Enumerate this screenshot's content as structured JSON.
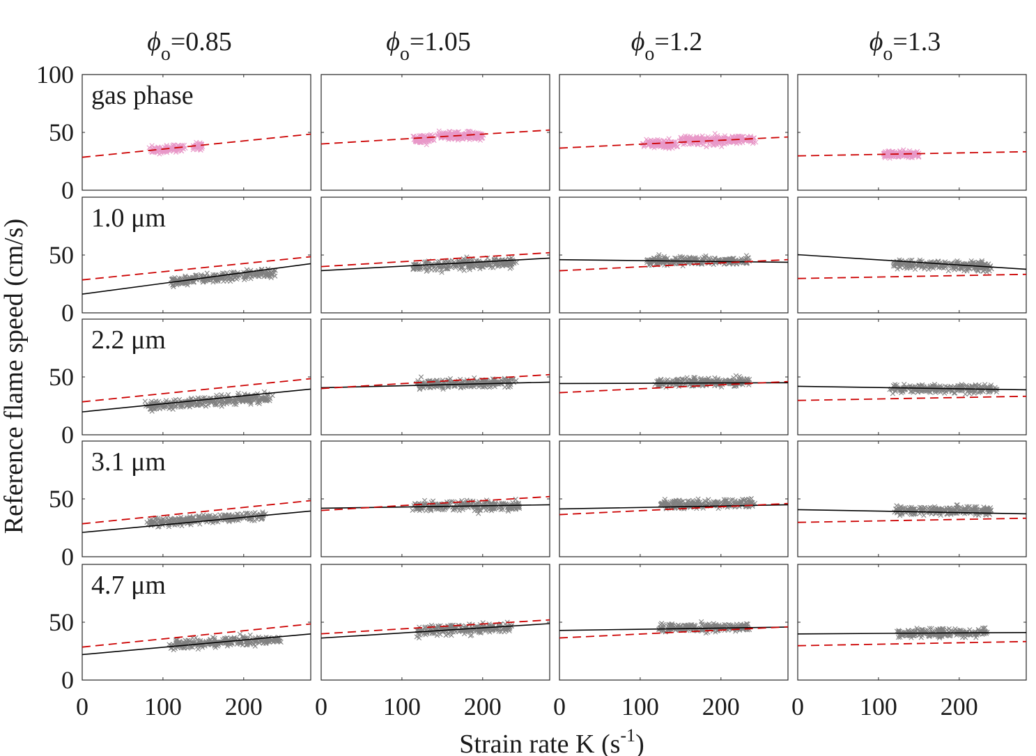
{
  "chart_data": {
    "type": "scatter",
    "layout": "5 rows x 4 columns small multiples",
    "xlim": [
      0,
      283
    ],
    "ylim": [
      0,
      100
    ],
    "xticks": [
      0,
      100,
      200
    ],
    "yticks": [
      0,
      50,
      100
    ],
    "xlabel": {
      "text": "Strain rate K (s",
      "sup": "-1",
      "close": ")"
    },
    "ylabel": "Reference flame speed (cm/s)",
    "grid": false,
    "colors": {
      "gas_points": "#e898c8",
      "droplet_points": "#808080",
      "gas_fit": "#cc0000",
      "droplet_fit": "#000000"
    },
    "columns": [
      {
        "symbol": "ϕ",
        "subscript": "o",
        "rest": "=0.85"
      },
      {
        "symbol": "ϕ",
        "subscript": "o",
        "rest": "=1.05"
      },
      {
        "symbol": "ϕ",
        "subscript": "o",
        "rest": "=1.2"
      },
      {
        "symbol": "ϕ",
        "subscript": "o",
        "rest": "=1.3"
      }
    ],
    "rows": [
      "gas phase",
      "1.0 μm",
      "2.2 μm",
      "3.1 μm",
      "4.7 μm"
    ],
    "gas_fit_lines": [
      [
        28.5,
        48.5
      ],
      [
        40.0,
        52.0
      ],
      [
        36.4,
        46.0
      ],
      [
        29.7,
        33.3
      ]
    ],
    "panels": [
      [
        {
          "black": null,
          "clusters": [
            {
              "x": [
                85,
                105
              ],
              "y": [
                35,
                35
              ],
              "spread": 3
            },
            {
              "x": [
                108,
                125
              ],
              "y": [
                36,
                36
              ],
              "spread": 3.5
            },
            {
              "x": [
                138,
                150
              ],
              "y": [
                38,
                38
              ],
              "spread": 3
            }
          ]
        },
        {
          "black": null,
          "clusters": [
            {
              "x": [
                115,
                140
              ],
              "y": [
                44,
                44
              ],
              "spread": 3.5
            },
            {
              "x": [
                145,
                200
              ],
              "y": [
                47,
                47
              ],
              "spread": 3.5
            }
          ]
        },
        {
          "black": null,
          "clusters": [
            {
              "x": [
                105,
                145
              ],
              "y": [
                40,
                40
              ],
              "spread": 3.5
            },
            {
              "x": [
                150,
                205
              ],
              "y": [
                43,
                43
              ],
              "spread": 4
            },
            {
              "x": [
                205,
                240
              ],
              "y": [
                44,
                44
              ],
              "spread": 3
            }
          ]
        },
        {
          "black": null,
          "clusters": [
            {
              "x": [
                105,
                150
              ],
              "y": [
                31,
                31
              ],
              "spread": 3
            }
          ]
        }
      ],
      [
        {
          "black": [
            16.2,
            42.5
          ],
          "clusters": [
            {
              "x": [
                110,
                240
              ],
              "y": [
                27,
                35
              ],
              "spread": 4
            }
          ]
        },
        {
          "black": [
            36.5,
            47.3
          ],
          "clusters": [
            {
              "x": [
                115,
                240
              ],
              "y": [
                40,
                44
              ],
              "spread": 4.5
            }
          ]
        },
        {
          "black": [
            46.0,
            43.7
          ],
          "clusters": [
            {
              "x": [
                110,
                235
              ],
              "y": [
                45,
                45
              ],
              "spread": 3.5
            }
          ]
        },
        {
          "black": [
            50.3,
            37.7
          ],
          "clusters": [
            {
              "x": [
                120,
                240
              ],
              "y": [
                43,
                40
              ],
              "spread": 4
            }
          ]
        }
      ],
      [
        {
          "black": [
            19.8,
            39.5
          ],
          "clusters": [
            {
              "x": [
                80,
                235
              ],
              "y": [
                25,
                33
              ],
              "spread": 4
            }
          ]
        },
        {
          "black": [
            40.7,
            45.5
          ],
          "clusters": [
            {
              "x": [
                120,
                240
              ],
              "y": [
                44,
                45
              ],
              "spread": 4
            }
          ]
        },
        {
          "black": [
            44.3,
            45.0
          ],
          "clusters": [
            {
              "x": [
                120,
                235
              ],
              "y": [
                45,
                46
              ],
              "spread": 3.5
            }
          ]
        },
        {
          "black": [
            41.9,
            38.9
          ],
          "clusters": [
            {
              "x": [
                115,
                245
              ],
              "y": [
                40,
                40
              ],
              "spread": 3.5
            }
          ]
        }
      ],
      [
        {
          "black": [
            21.0,
            39.5
          ],
          "clusters": [
            {
              "x": [
                80,
                225
              ],
              "y": [
                29,
                36
              ],
              "spread": 3.5
            }
          ]
        },
        {
          "black": [
            41.9,
            44.9
          ],
          "clusters": [
            {
              "x": [
                115,
                245
              ],
              "y": [
                44,
                44
              ],
              "spread": 4
            }
          ]
        },
        {
          "black": [
            41.3,
            44.9
          ],
          "clusters": [
            {
              "x": [
                125,
                240
              ],
              "y": [
                45,
                46
              ],
              "spread": 3.5
            }
          ]
        },
        {
          "black": [
            40.7,
            37.1
          ],
          "clusters": [
            {
              "x": [
                120,
                240
              ],
              "y": [
                40,
                40
              ],
              "spread": 3.5
            }
          ]
        }
      ],
      [
        {
          "black": [
            22.0,
            39.9
          ],
          "clusters": [
            {
              "x": [
                110,
                245
              ],
              "y": [
                31,
                35
              ],
              "spread": 4
            }
          ]
        },
        {
          "black": [
            36.3,
            48.8
          ],
          "clusters": [
            {
              "x": [
                120,
                235
              ],
              "y": [
                42,
                46
              ],
              "spread": 4
            }
          ]
        },
        {
          "black": [
            42.9,
            45.8
          ],
          "clusters": [
            {
              "x": [
                125,
                235
              ],
              "y": [
                45,
                46
              ],
              "spread": 3.5
            }
          ]
        },
        {
          "black": [
            39.9,
            41.1
          ],
          "clusters": [
            {
              "x": [
                125,
                235
              ],
              "y": [
                40,
                41
              ],
              "spread": 3.5
            }
          ]
        }
      ]
    ]
  }
}
